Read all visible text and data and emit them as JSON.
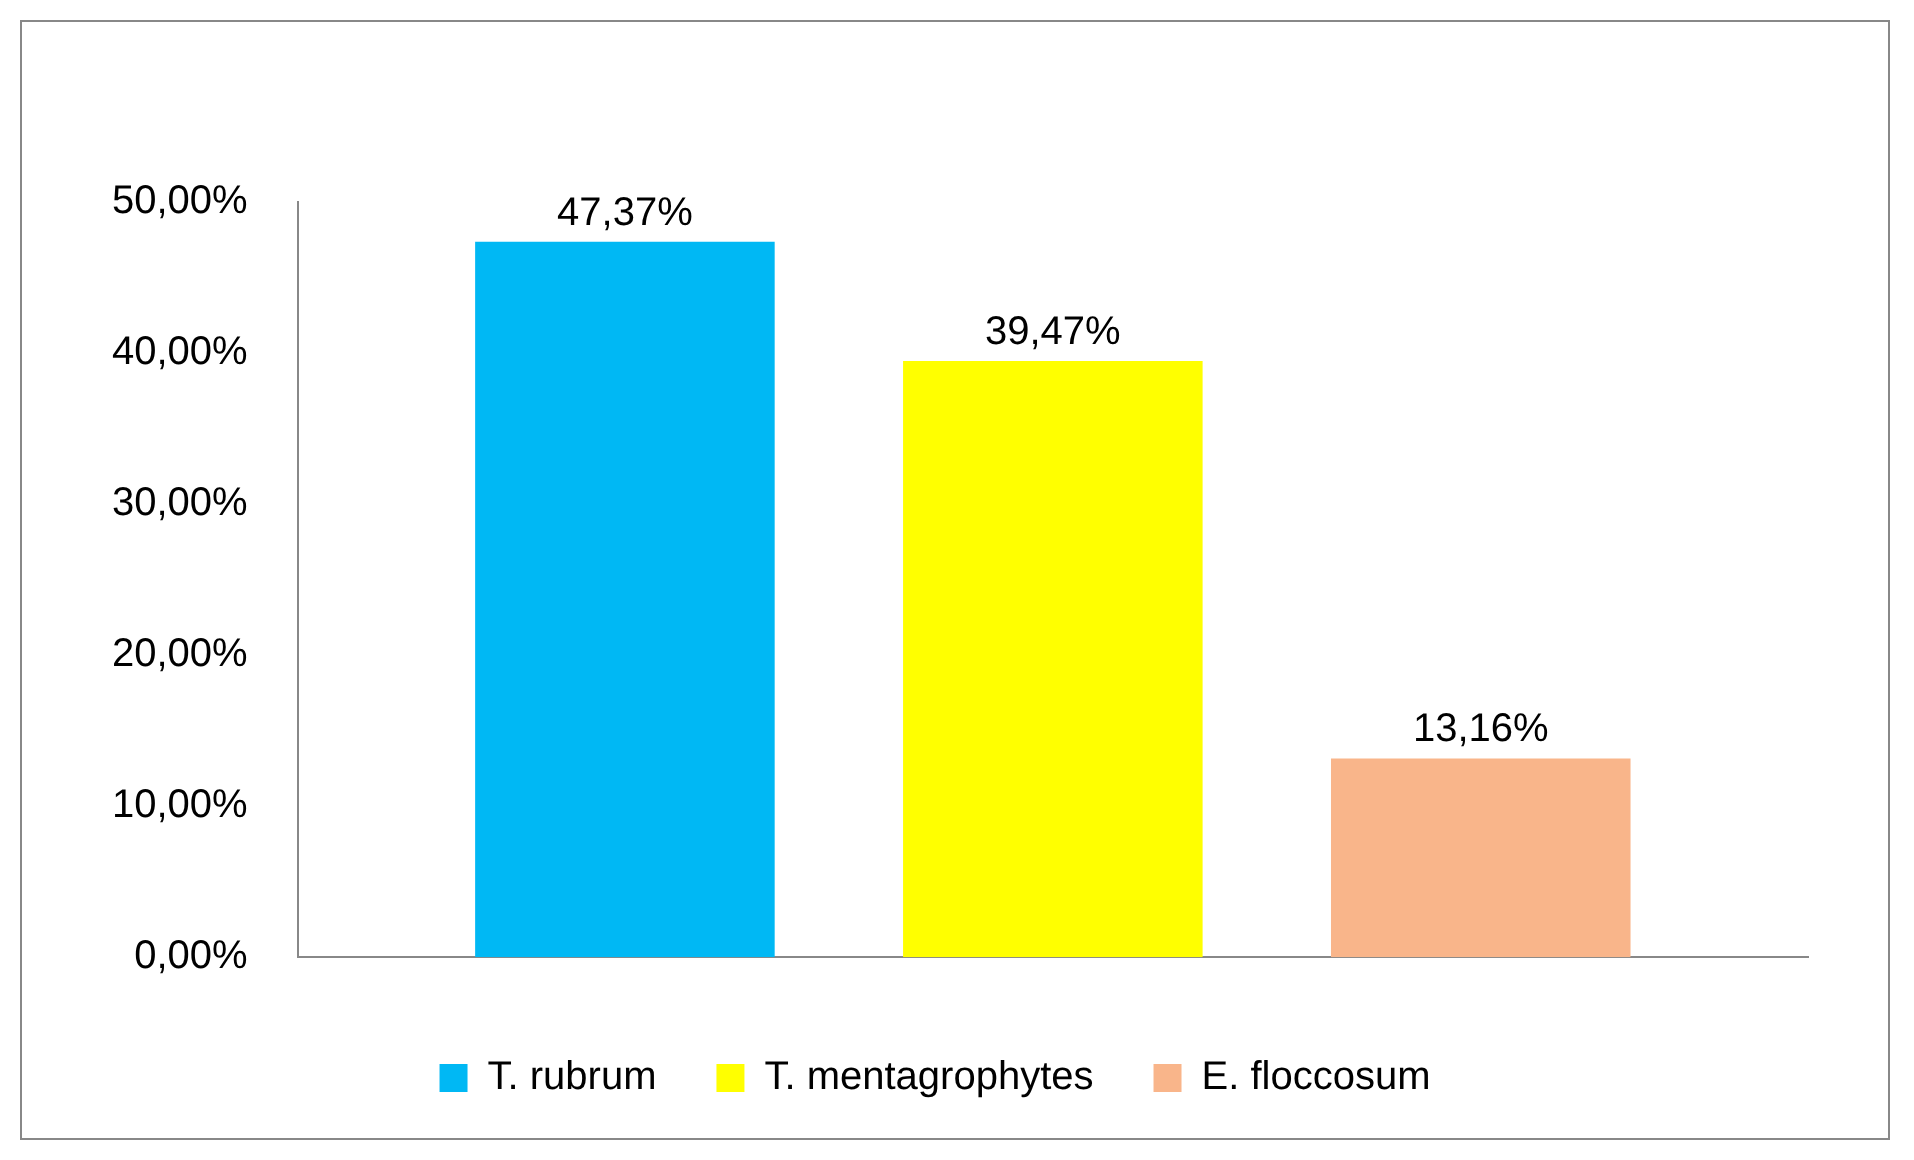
{
  "chart_data": {
    "type": "bar",
    "categories": [
      null
    ],
    "series": [
      {
        "name": "T. rubrum",
        "color": "#00b8f4",
        "values": [
          47.37
        ],
        "value_labels": [
          "47,37%"
        ]
      },
      {
        "name": "T. mentagrophytes",
        "color": "#ffff00",
        "values": [
          39.47
        ],
        "value_labels": [
          "39,47%"
        ]
      },
      {
        "name": "E. floccosum",
        "color": "#f9b58a",
        "values": [
          13.16
        ],
        "value_labels": [
          "13,16%"
        ]
      }
    ],
    "ylim": [
      0,
      50
    ],
    "yticks": [
      {
        "value": 0,
        "label": "0,00%"
      },
      {
        "value": 10,
        "label": "10,00%"
      },
      {
        "value": 20,
        "label": "20,00%"
      },
      {
        "value": 30,
        "label": "30,00%"
      },
      {
        "value": 40,
        "label": "40,00%"
      },
      {
        "value": 50,
        "label": "50,00%"
      }
    ],
    "legend": "bottom"
  }
}
